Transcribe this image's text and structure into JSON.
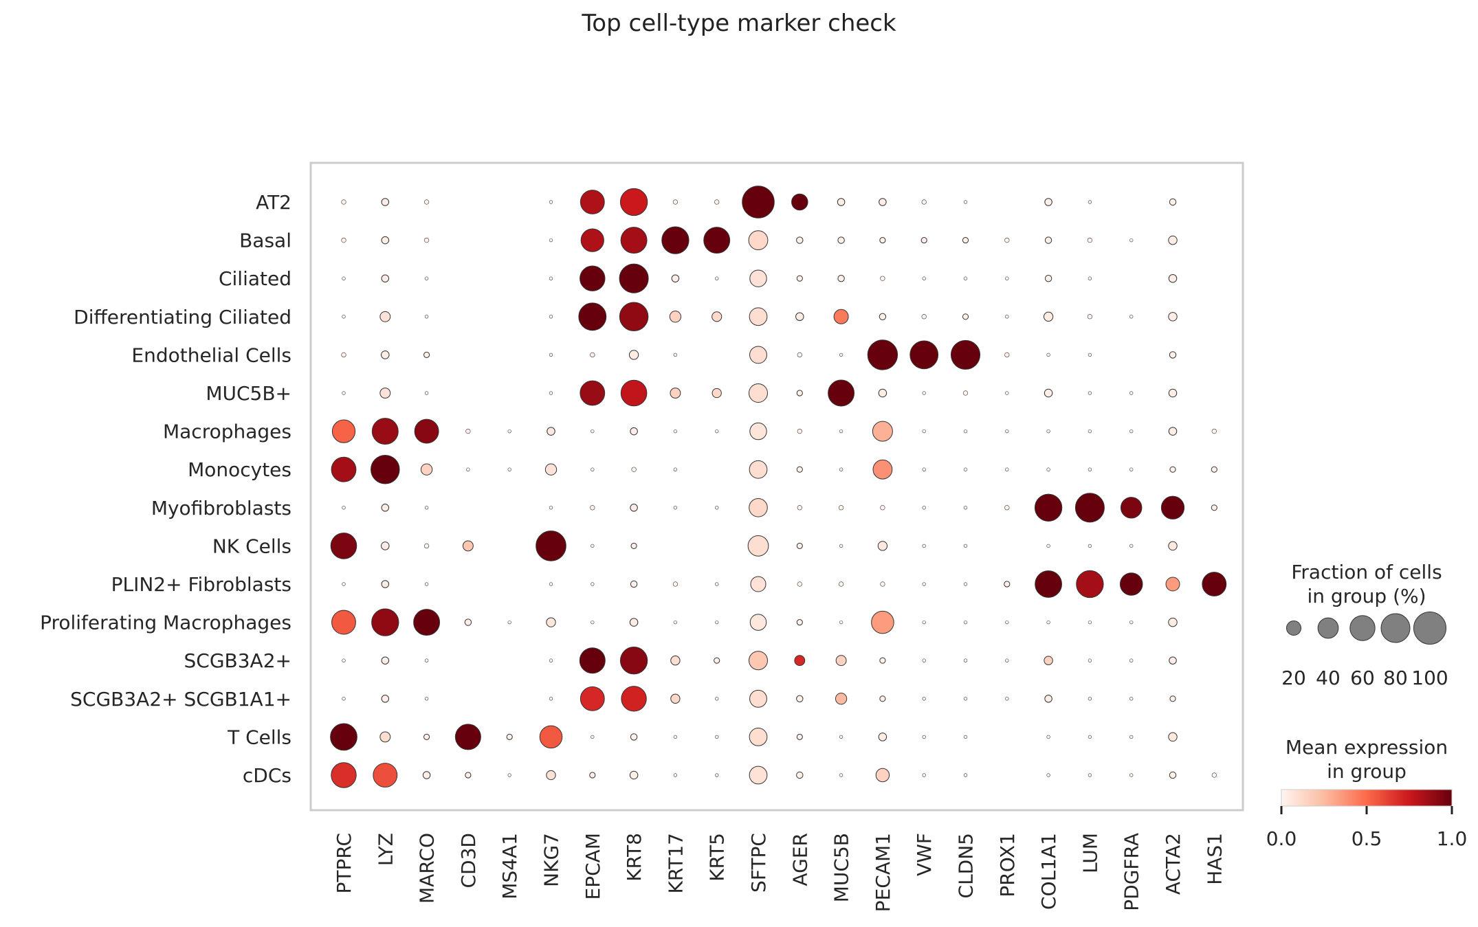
{
  "chart_data": {
    "type": "dotplot",
    "title": "Top cell-type marker check",
    "genes": [
      "PTPRC",
      "LYZ",
      "MARCO",
      "CD3D",
      "MS4A1",
      "NKG7",
      "EPCAM",
      "KRT8",
      "KRT17",
      "KRT5",
      "SFTPC",
      "AGER",
      "MUC5B",
      "PECAM1",
      "VWF",
      "CLDN5",
      "PROX1",
      "COL1A1",
      "LUM",
      "PDGFRA",
      "ACTA2",
      "HAS1"
    ],
    "groups": [
      "AT2",
      "Basal",
      "Ciliated",
      "Differentiating Ciliated",
      "Endothelial Cells",
      "MUC5B+",
      "Macrophages",
      "Monocytes",
      "Myofibroblasts",
      "NK Cells",
      "PLIN2+ Fibroblasts",
      "Proliferating Macrophages",
      "SCGB3A2+",
      "SCGB3A2+ SCGB1A1+",
      "T Cells",
      "cDCs"
    ],
    "fraction_pct": [
      [
        2,
        5,
        2,
        0,
        0,
        1,
        55,
        70,
        2,
        2,
        98,
        25,
        5,
        5,
        2,
        1,
        0,
        5,
        1,
        0,
        4,
        0
      ],
      [
        2,
        5,
        2,
        0,
        0,
        1,
        50,
        65,
        70,
        65,
        35,
        4,
        4,
        3,
        3,
        3,
        2,
        4,
        2,
        1,
        7,
        0
      ],
      [
        1,
        5,
        1,
        0,
        0,
        1,
        60,
        80,
        5,
        1,
        27,
        3,
        4,
        2,
        1,
        1,
        1,
        4,
        1,
        0,
        6,
        0
      ],
      [
        1,
        10,
        1,
        0,
        0,
        1,
        72,
        78,
        12,
        9,
        30,
        6,
        20,
        4,
        2,
        3,
        1,
        8,
        2,
        1,
        7,
        0
      ],
      [
        2,
        6,
        3,
        0,
        0,
        1,
        2,
        8,
        1,
        0,
        28,
        2,
        1,
        85,
        75,
        80,
        2,
        1,
        1,
        0,
        4,
        0
      ],
      [
        1,
        10,
        1,
        0,
        0,
        1,
        58,
        64,
        10,
        8,
        33,
        3,
        65,
        6,
        1,
        2,
        1,
        6,
        1,
        1,
        6,
        0
      ],
      [
        50,
        65,
        55,
        2,
        1,
        6,
        1,
        5,
        1,
        1,
        27,
        2,
        1,
        38,
        1,
        1,
        1,
        1,
        1,
        1,
        6,
        2
      ],
      [
        58,
        78,
        12,
        1,
        1,
        12,
        1,
        2,
        1,
        0,
        30,
        3,
        1,
        35,
        1,
        1,
        1,
        1,
        1,
        1,
        3,
        3
      ],
      [
        1,
        5,
        1,
        0,
        0,
        1,
        2,
        5,
        1,
        1,
        32,
        2,
        2,
        2,
        1,
        1,
        2,
        70,
        80,
        42,
        50,
        3
      ],
      [
        64,
        6,
        2,
        10,
        0,
        86,
        1,
        3,
        0,
        0,
        40,
        3,
        1,
        8,
        1,
        1,
        0,
        1,
        1,
        1,
        7,
        0
      ],
      [
        1,
        5,
        1,
        0,
        0,
        1,
        1,
        4,
        2,
        1,
        22,
        2,
        2,
        2,
        1,
        1,
        3,
        68,
        70,
        48,
        18,
        55
      ],
      [
        55,
        70,
        65,
        4,
        1,
        8,
        1,
        6,
        1,
        1,
        25,
        3,
        1,
        48,
        1,
        1,
        1,
        1,
        1,
        1,
        7,
        0
      ],
      [
        1,
        5,
        1,
        0,
        0,
        1,
        62,
        70,
        8,
        3,
        33,
        10,
        10,
        3,
        1,
        1,
        1,
        7,
        1,
        1,
        5,
        0
      ],
      [
        1,
        5,
        1,
        0,
        0,
        1,
        55,
        60,
        8,
        1,
        28,
        4,
        12,
        3,
        1,
        1,
        1,
        5,
        1,
        1,
        3,
        0
      ],
      [
        68,
        10,
        3,
        62,
        3,
        48,
        1,
        4,
        1,
        1,
        30,
        3,
        1,
        6,
        1,
        1,
        0,
        1,
        1,
        1,
        7,
        0
      ],
      [
        60,
        55,
        5,
        3,
        1,
        8,
        3,
        6,
        1,
        1,
        30,
        4,
        1,
        17,
        1,
        1,
        0,
        1,
        1,
        1,
        4,
        2
      ]
    ],
    "mean_expr": [
      [
        0.02,
        0.03,
        0.02,
        0,
        0,
        0.01,
        0.82,
        0.75,
        0.02,
        0.02,
        1.0,
        1.0,
        0.02,
        0.03,
        0.02,
        0.01,
        0,
        0.02,
        0.01,
        0,
        0.02,
        0
      ],
      [
        0.02,
        0.03,
        0.02,
        0,
        0,
        0.01,
        0.82,
        0.85,
        1.0,
        1.0,
        0.12,
        0.02,
        0.02,
        0.02,
        0.02,
        0.02,
        0.01,
        0.02,
        0.01,
        0,
        0.03,
        0
      ],
      [
        0.01,
        0.03,
        0.01,
        0,
        0,
        0.01,
        1.0,
        1.0,
        0.03,
        0.01,
        0.08,
        0.02,
        0.02,
        0.01,
        0.01,
        0.01,
        0,
        0.02,
        0.01,
        0,
        0.03,
        0
      ],
      [
        0.01,
        0.08,
        0.01,
        0,
        0,
        0.01,
        1.0,
        0.9,
        0.15,
        0.12,
        0.1,
        0.04,
        0.45,
        0.02,
        0.01,
        0.02,
        0,
        0.04,
        0.01,
        0,
        0.03,
        0
      ],
      [
        0.02,
        0.03,
        0.02,
        0,
        0,
        0.01,
        0.02,
        0.04,
        0.01,
        0,
        0.1,
        0.01,
        0.01,
        1.0,
        1.0,
        1.0,
        0.02,
        0.01,
        0.01,
        0,
        0.02,
        0
      ],
      [
        0.01,
        0.08,
        0.01,
        0,
        0,
        0.01,
        0.88,
        0.78,
        0.15,
        0.12,
        0.1,
        0.02,
        1.0,
        0.04,
        0.01,
        0.01,
        0,
        0.03,
        0.01,
        0,
        0.03,
        0
      ],
      [
        0.52,
        0.88,
        0.92,
        0.02,
        0.01,
        0.05,
        0.01,
        0.03,
        0.01,
        0.01,
        0.07,
        0.02,
        0.01,
        0.28,
        0.01,
        0.01,
        0.01,
        0.01,
        0.01,
        0.01,
        0.03,
        0.01
      ],
      [
        0.85,
        1.0,
        0.15,
        0.01,
        0.01,
        0.08,
        0.01,
        0.01,
        0.01,
        0,
        0.1,
        0.02,
        0.01,
        0.38,
        0.01,
        0.01,
        0.01,
        0.01,
        0.01,
        0.01,
        0.02,
        0.02
      ],
      [
        0.01,
        0.03,
        0.01,
        0,
        0,
        0.01,
        0.01,
        0.03,
        0.01,
        0.01,
        0.12,
        0.01,
        0.01,
        0.01,
        0.01,
        0.01,
        0.01,
        1.0,
        1.0,
        0.95,
        1.0,
        0.02
      ],
      [
        0.95,
        0.03,
        0.01,
        0.2,
        0,
        1.0,
        0.01,
        0.02,
        0,
        0,
        0.1,
        0.02,
        0.01,
        0.05,
        0.01,
        0.01,
        0,
        0.01,
        0.01,
        0.01,
        0.05,
        0
      ],
      [
        0.01,
        0.03,
        0.01,
        0,
        0,
        0.01,
        0.01,
        0.02,
        0.01,
        0.01,
        0.08,
        0.01,
        0.01,
        0.01,
        0.01,
        0.01,
        0.02,
        1.0,
        0.85,
        1.0,
        0.35,
        1.0
      ],
      [
        0.55,
        0.9,
        1.0,
        0.03,
        0.01,
        0.06,
        0.01,
        0.04,
        0.01,
        0.01,
        0.06,
        0.02,
        0.01,
        0.35,
        0.01,
        0.01,
        0.01,
        0.01,
        0.01,
        0.01,
        0.04,
        0
      ],
      [
        0.01,
        0.03,
        0.01,
        0,
        0,
        0.01,
        1.0,
        0.92,
        0.1,
        0.03,
        0.2,
        0.7,
        0.15,
        0.02,
        0.01,
        0.01,
        0,
        0.15,
        0.01,
        0.01,
        0.03,
        0
      ],
      [
        0.01,
        0.03,
        0.01,
        0,
        0,
        0.01,
        0.7,
        0.72,
        0.12,
        0.01,
        0.1,
        0.02,
        0.25,
        0.02,
        0.01,
        0.01,
        0,
        0.03,
        0.01,
        0.01,
        0.02,
        0
      ],
      [
        1.0,
        0.1,
        0.02,
        1.0,
        0.02,
        0.55,
        0.01,
        0.02,
        0.01,
        0.01,
        0.1,
        0.02,
        0.01,
        0.04,
        0.01,
        0.01,
        0,
        0.01,
        0.01,
        0.01,
        0.05,
        0
      ],
      [
        0.68,
        0.58,
        0.03,
        0.02,
        0.01,
        0.08,
        0.02,
        0.03,
        0.01,
        0.01,
        0.08,
        0.02,
        0.01,
        0.15,
        0.01,
        0.01,
        0,
        0.01,
        0.01,
        0.01,
        0.02,
        0.01
      ]
    ],
    "size_legend": {
      "title_line1": "Fraction of cells",
      "title_line2": "in group (%)",
      "values": [
        20,
        40,
        60,
        80,
        100
      ],
      "labels": [
        "20",
        "40",
        "60",
        "80",
        "100"
      ]
    },
    "color_legend": {
      "title_line1": "Mean expression",
      "title_line2": "in group",
      "ticks": [
        "0.0",
        "0.5",
        "1.0"
      ]
    },
    "colormap": [
      "#fff5f0",
      "#fcbba1",
      "#fb6a4a",
      "#cb181d",
      "#67000d"
    ]
  }
}
